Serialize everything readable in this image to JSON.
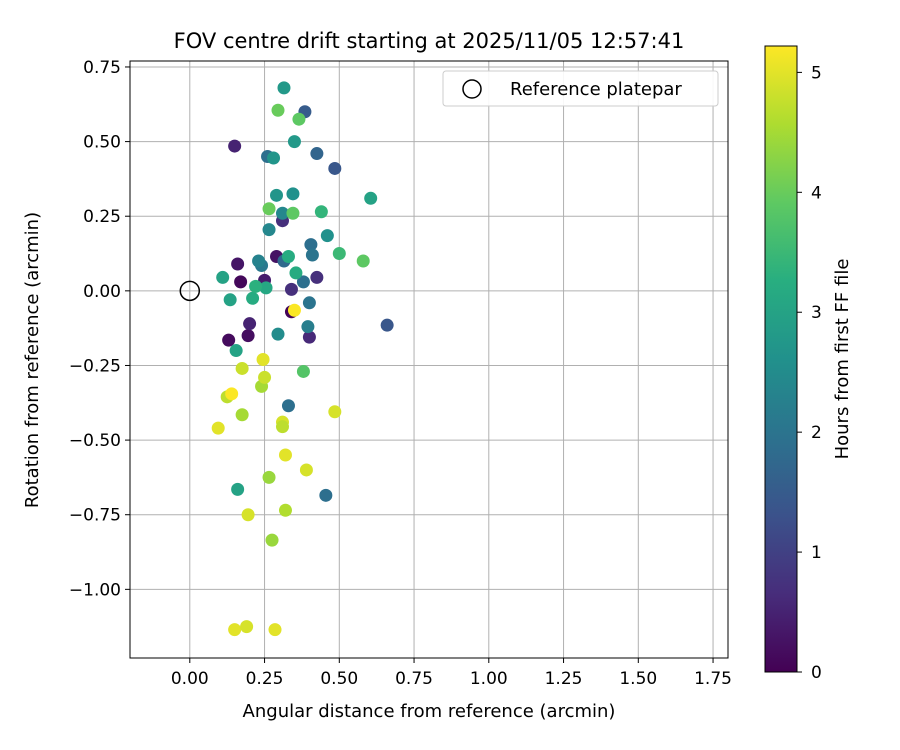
{
  "chart_data": {
    "type": "scatter",
    "title": "FOV centre drift starting at 2025/11/05 12:57:41",
    "xlabel": "Angular distance from reference (arcmin)",
    "ylabel": "Rotation from reference (arcmin)",
    "xlim": [
      -0.2,
      1.8
    ],
    "ylim": [
      -1.23,
      0.77
    ],
    "x_ticks": [
      0.0,
      0.25,
      0.5,
      0.75,
      1.0,
      1.25,
      1.5,
      1.75
    ],
    "x_tick_labels": [
      "0.00",
      "0.25",
      "0.50",
      "0.75",
      "1.00",
      "1.25",
      "1.50",
      "1.75"
    ],
    "y_ticks": [
      0.75,
      0.5,
      0.25,
      0.0,
      -0.25,
      -0.5,
      -0.75,
      -1.0
    ],
    "y_tick_labels": [
      "0.75",
      "0.50",
      "0.25",
      "0.00",
      "−0.25",
      "−0.50",
      "−0.75",
      "−1.00"
    ],
    "grid": true,
    "legend": {
      "location": "top-right",
      "entries": [
        "Reference platepar"
      ]
    },
    "reference_point": {
      "x": 0.0,
      "y": 0.0,
      "label": "Reference platepar"
    },
    "colorbar": {
      "label": "Hours from first FF file",
      "range": [
        0,
        5.22
      ],
      "ticks": [
        0,
        1,
        2,
        3,
        4,
        5
      ],
      "tick_labels": [
        "0",
        "1",
        "2",
        "3",
        "4",
        "5"
      ],
      "colormap": "viridis"
    },
    "points": [
      {
        "x": 0.15,
        "y": 0.485,
        "h": 0.5
      },
      {
        "x": 0.16,
        "y": 0.09,
        "h": 0.3
      },
      {
        "x": 0.17,
        "y": 0.03,
        "h": 0.1
      },
      {
        "x": 0.13,
        "y": -0.165,
        "h": 0.15
      },
      {
        "x": 0.195,
        "y": -0.15,
        "h": 0.2
      },
      {
        "x": 0.2,
        "y": -0.11,
        "h": 0.5
      },
      {
        "x": 0.25,
        "y": 0.035,
        "h": 0.4
      },
      {
        "x": 0.29,
        "y": 0.115,
        "h": 0.25
      },
      {
        "x": 0.31,
        "y": 0.235,
        "h": 0.7
      },
      {
        "x": 0.34,
        "y": 0.005,
        "h": 0.7
      },
      {
        "x": 0.34,
        "y": -0.07,
        "h": 0.05
      },
      {
        "x": 0.4,
        "y": -0.155,
        "h": 0.6
      },
      {
        "x": 0.425,
        "y": 0.045,
        "h": 0.7
      },
      {
        "x": 0.66,
        "y": -0.115,
        "h": 1.4
      },
      {
        "x": 0.485,
        "y": 0.41,
        "h": 1.4
      },
      {
        "x": 0.385,
        "y": 0.6,
        "h": 1.5
      },
      {
        "x": 0.425,
        "y": 0.46,
        "h": 1.7
      },
      {
        "x": 0.26,
        "y": 0.45,
        "h": 1.9
      },
      {
        "x": 0.33,
        "y": -0.385,
        "h": 1.9
      },
      {
        "x": 0.455,
        "y": -0.685,
        "h": 1.9
      },
      {
        "x": 0.315,
        "y": 0.1,
        "h": 1.8
      },
      {
        "x": 0.38,
        "y": 0.03,
        "h": 1.9
      },
      {
        "x": 0.4,
        "y": -0.04,
        "h": 2.0
      },
      {
        "x": 0.395,
        "y": -0.12,
        "h": 2.2
      },
      {
        "x": 0.405,
        "y": 0.155,
        "h": 1.9
      },
      {
        "x": 0.41,
        "y": 0.12,
        "h": 2.0
      },
      {
        "x": 0.24,
        "y": 0.085,
        "h": 2.1
      },
      {
        "x": 0.23,
        "y": 0.1,
        "h": 2.3
      },
      {
        "x": 0.31,
        "y": 0.26,
        "h": 2.4
      },
      {
        "x": 0.265,
        "y": 0.205,
        "h": 2.4
      },
      {
        "x": 0.345,
        "y": 0.325,
        "h": 2.6
      },
      {
        "x": 0.29,
        "y": 0.32,
        "h": 2.7
      },
      {
        "x": 0.28,
        "y": 0.445,
        "h": 2.7
      },
      {
        "x": 0.35,
        "y": 0.5,
        "h": 2.8
      },
      {
        "x": 0.315,
        "y": 0.68,
        "h": 2.8
      },
      {
        "x": 0.295,
        "y": -0.145,
        "h": 2.5
      },
      {
        "x": 0.46,
        "y": 0.185,
        "h": 2.6
      },
      {
        "x": 0.605,
        "y": 0.31,
        "h": 3.0
      },
      {
        "x": 0.16,
        "y": -0.665,
        "h": 3.0
      },
      {
        "x": 0.155,
        "y": -0.2,
        "h": 3.0
      },
      {
        "x": 0.11,
        "y": 0.045,
        "h": 3.0
      },
      {
        "x": 0.135,
        "y": -0.03,
        "h": 3.0
      },
      {
        "x": 0.21,
        "y": -0.025,
        "h": 3.2
      },
      {
        "x": 0.255,
        "y": 0.01,
        "h": 3.1
      },
      {
        "x": 0.22,
        "y": 0.015,
        "h": 3.3
      },
      {
        "x": 0.355,
        "y": 0.06,
        "h": 3.2
      },
      {
        "x": 0.33,
        "y": 0.115,
        "h": 3.2
      },
      {
        "x": 0.44,
        "y": 0.265,
        "h": 3.4
      },
      {
        "x": 0.5,
        "y": 0.125,
        "h": 3.5
      },
      {
        "x": 0.38,
        "y": -0.27,
        "h": 3.8
      },
      {
        "x": 0.345,
        "y": 0.26,
        "h": 3.9
      },
      {
        "x": 0.265,
        "y": 0.275,
        "h": 4.0
      },
      {
        "x": 0.58,
        "y": 0.1,
        "h": 3.9
      },
      {
        "x": 0.365,
        "y": 0.575,
        "h": 3.9
      },
      {
        "x": 0.295,
        "y": 0.605,
        "h": 4.0
      },
      {
        "x": 0.265,
        "y": -0.625,
        "h": 4.4
      },
      {
        "x": 0.275,
        "y": -0.835,
        "h": 4.4
      },
      {
        "x": 0.175,
        "y": -0.415,
        "h": 4.5
      },
      {
        "x": 0.24,
        "y": -0.32,
        "h": 4.5
      },
      {
        "x": 0.125,
        "y": -0.355,
        "h": 4.7
      },
      {
        "x": 0.175,
        "y": -0.26,
        "h": 4.8
      },
      {
        "x": 0.25,
        "y": -0.29,
        "h": 4.8
      },
      {
        "x": 0.32,
        "y": -0.735,
        "h": 4.6
      },
      {
        "x": 0.31,
        "y": -0.44,
        "h": 4.9
      },
      {
        "x": 0.31,
        "y": -0.455,
        "h": 4.7
      },
      {
        "x": 0.245,
        "y": -0.23,
        "h": 5.0
      },
      {
        "x": 0.095,
        "y": -0.46,
        "h": 5.0
      },
      {
        "x": 0.32,
        "y": -0.55,
        "h": 5.0
      },
      {
        "x": 0.39,
        "y": -0.6,
        "h": 4.9
      },
      {
        "x": 0.485,
        "y": -0.405,
        "h": 4.9
      },
      {
        "x": 0.195,
        "y": -0.75,
        "h": 4.9
      },
      {
        "x": 0.15,
        "y": -1.135,
        "h": 5.0
      },
      {
        "x": 0.19,
        "y": -1.125,
        "h": 4.9
      },
      {
        "x": 0.285,
        "y": -1.135,
        "h": 5.0
      },
      {
        "x": 0.35,
        "y": -0.065,
        "h": 5.2
      },
      {
        "x": 0.14,
        "y": -0.345,
        "h": 5.2
      }
    ]
  }
}
